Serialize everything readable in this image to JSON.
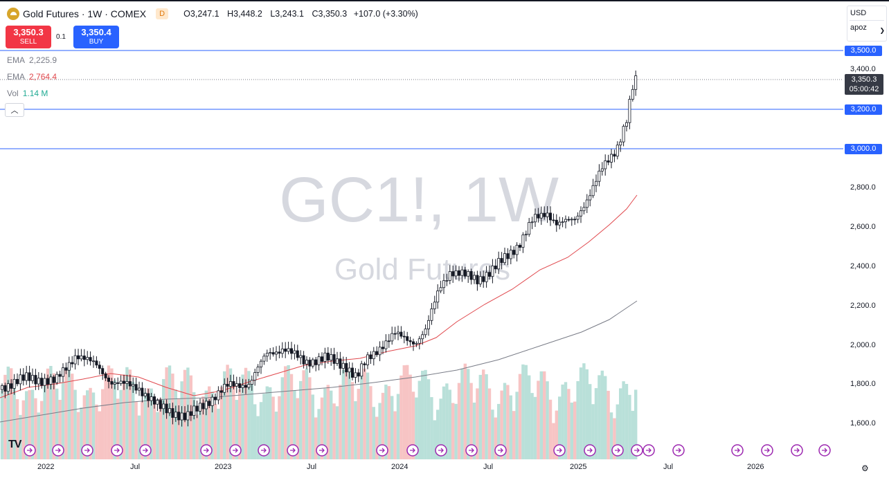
{
  "header": {
    "title": "Gold Futures · 1W · COMEX",
    "badge": "D",
    "ohlc": {
      "o_label": "O",
      "o": "3,247.1",
      "h_label": "H",
      "h": "3,448.2",
      "l_label": "L",
      "l": "3,243.1",
      "c_label": "C",
      "c": "3,350.3",
      "change": "+107.0 (+3.30%)"
    }
  },
  "trade": {
    "sell_price": "3,350.3",
    "sell_label": "SELL",
    "spread": "0.1",
    "buy_price": "3,350.4",
    "buy_label": "BUY"
  },
  "indicators": [
    {
      "name": "EMA",
      "value": "2,225.9",
      "color": "#787b86"
    },
    {
      "name": "EMA",
      "value": "2,764.4",
      "color": "#e0474c"
    },
    {
      "name": "Vol",
      "value": "1.14 M",
      "color": "#22ab94"
    }
  ],
  "currency": {
    "value": "USD",
    "unit": "apoz"
  },
  "watermark": {
    "symbol": "GC1!, 1W",
    "name": "Gold Futures"
  },
  "price_axis": {
    "ticks": [
      "3,400.0",
      "2,800.0",
      "2,600.0",
      "2,400.0",
      "2,200.0",
      "2,000.0",
      "1,800.0",
      "1,600.0"
    ],
    "level_tags": [
      "3,500.0",
      "3,200.0",
      "3,000.0"
    ],
    "last_price": "3,350.3",
    "countdown": "05:00:42"
  },
  "time_axis": [
    "2022",
    "Jul",
    "2023",
    "Jul",
    "2024",
    "Jul",
    "2025",
    "Jul",
    "2026"
  ],
  "colors": {
    "up": "#131722",
    "down": "#131722",
    "level": "#2962ff",
    "ema_fast": "#e0474c",
    "ema_slow": "#787b86",
    "vol_up": "#a8d8d0",
    "vol_down": "#f5b5b5",
    "event": "#9c27b0"
  },
  "logo_text": "TV",
  "settings_icon": "gear-icon"
}
